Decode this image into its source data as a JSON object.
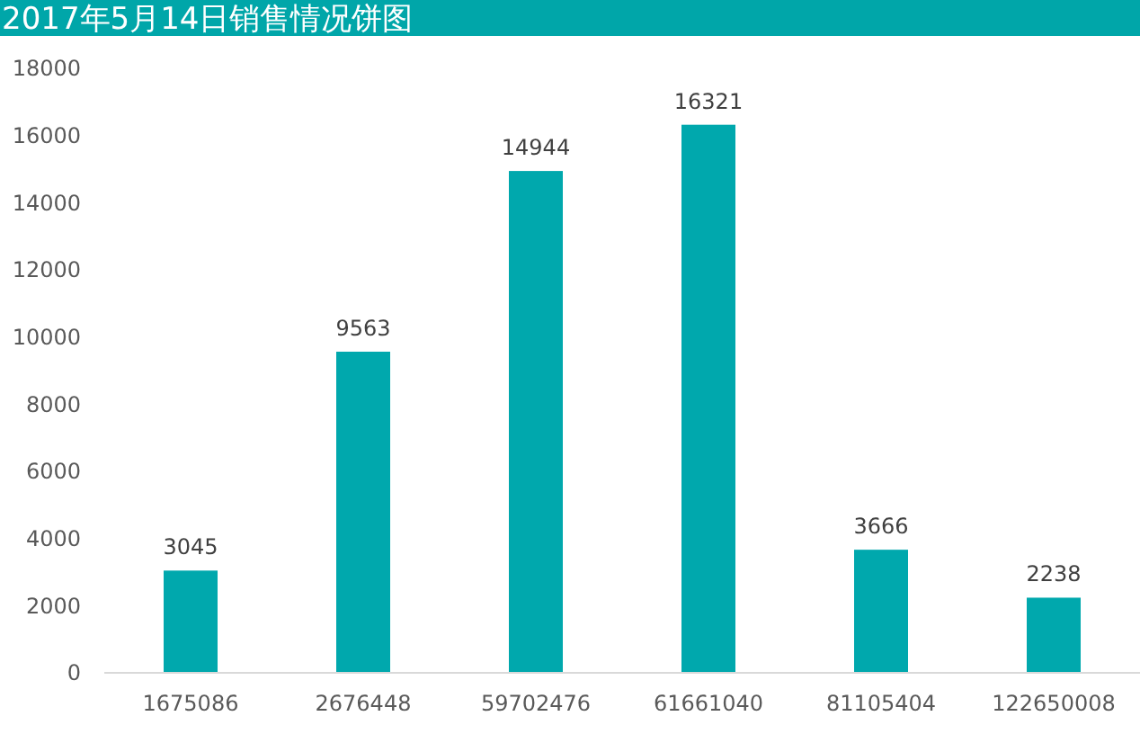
{
  "chart_data": {
    "type": "bar",
    "title": "2017年5月14日销售情况饼图",
    "categories": [
      "1675086",
      "2676448",
      "59702476",
      "61661040",
      "81105404",
      "122650008"
    ],
    "values": [
      3045,
      9563,
      14944,
      16321,
      3666,
      2238
    ],
    "color": "#00a8ad",
    "ylim": [
      0,
      18000
    ],
    "yticks": [
      0,
      2000,
      4000,
      6000,
      8000,
      10000,
      12000,
      14000,
      16000,
      18000
    ],
    "data_labels": true
  }
}
